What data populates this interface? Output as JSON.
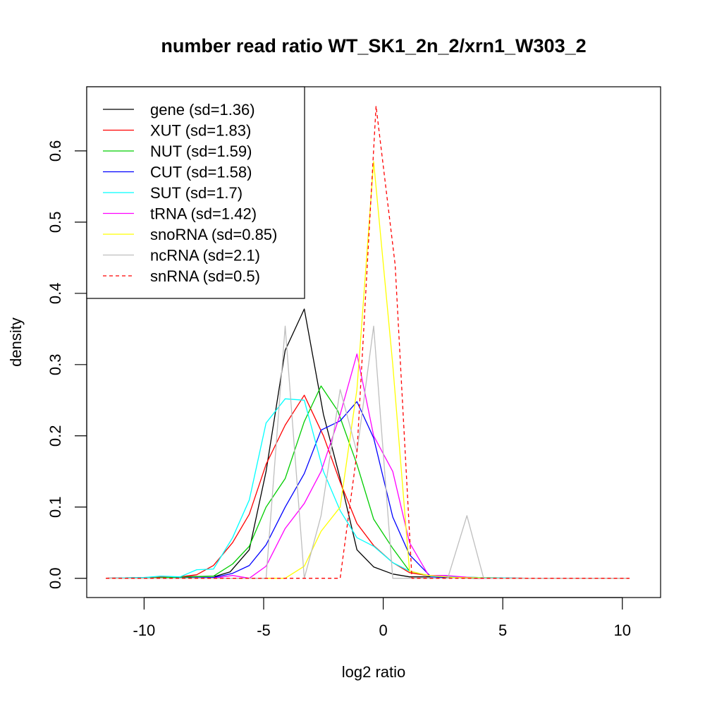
{
  "chart_data": {
    "type": "line",
    "title": "number read ratio WT_SK1_2n_2/xrn1_W303_2",
    "xlabel": "log2 ratio",
    "ylabel": "density",
    "xlim": [
      -12.4,
      11.6
    ],
    "ylim": [
      -0.027,
      0.69
    ],
    "x_ticks": [
      -10,
      -5,
      0,
      5,
      10
    ],
    "x_tick_labels": [
      "-10",
      "-5",
      "0",
      "5",
      "10"
    ],
    "y_ticks": [
      0.0,
      0.1,
      0.2,
      0.3,
      0.4,
      0.5,
      0.6
    ],
    "y_tick_labels": [
      "0.0",
      "0.1",
      "0.2",
      "0.3",
      "0.4",
      "0.5",
      "0.6"
    ],
    "grid": false,
    "legend_position": "top-left",
    "series": [
      {
        "name": "gene (sd=1.36)",
        "color": "#000000",
        "dash": "solid",
        "x": [
          -11.6,
          -10.0,
          -9.0,
          -8.5,
          -7.0,
          -6.4,
          -5.6,
          -4.9,
          -4.1,
          -3.3,
          -2.5,
          -1.8,
          -1.1,
          -0.4,
          0.4,
          1.1,
          2.0,
          3.0,
          4.0,
          6.0,
          8.0,
          10.3
        ],
        "y": [
          0.0,
          0.001,
          0.001,
          0.002,
          0.003,
          0.009,
          0.04,
          0.15,
          0.32,
          0.378,
          0.23,
          0.14,
          0.04,
          0.016,
          0.006,
          0.002,
          0.002,
          0.001,
          0.0,
          0.0,
          0.0,
          0.0
        ]
      },
      {
        "name": "XUT (sd=1.83)",
        "color": "#ff0000",
        "dash": "solid",
        "x": [
          -11.6,
          -10.0,
          -9.0,
          -8.5,
          -7.8,
          -7.1,
          -6.3,
          -5.6,
          -4.9,
          -4.1,
          -3.3,
          -2.5,
          -1.8,
          -1.1,
          -0.4,
          0.4,
          1.1,
          2.0,
          3.0,
          4.0,
          6.0,
          8.0,
          10.3
        ],
        "y": [
          0.0,
          0.001,
          0.002,
          0.002,
          0.005,
          0.018,
          0.05,
          0.09,
          0.16,
          0.215,
          0.257,
          0.2,
          0.135,
          0.077,
          0.046,
          0.022,
          0.008,
          0.003,
          0.002,
          0.001,
          0.0,
          0.0,
          0.0
        ]
      },
      {
        "name": "NUT (sd=1.59)",
        "color": "#00cd00",
        "dash": "solid",
        "x": [
          -11.6,
          -10.0,
          -9.0,
          -8.0,
          -7.1,
          -6.3,
          -5.6,
          -4.9,
          -4.1,
          -3.3,
          -2.6,
          -1.9,
          -1.1,
          -0.4,
          0.4,
          1.1,
          2.0,
          3.0,
          4.0,
          6.0,
          8.0,
          10.3
        ],
        "y": [
          0.0,
          0.0,
          0.001,
          0.002,
          0.003,
          0.02,
          0.045,
          0.1,
          0.14,
          0.22,
          0.27,
          0.235,
          0.16,
          0.083,
          0.042,
          0.01,
          0.003,
          0.001,
          0.0,
          0.0,
          0.0,
          0.0
        ]
      },
      {
        "name": "CUT (sd=1.58)",
        "color": "#0000ff",
        "dash": "solid",
        "x": [
          -11.6,
          -9.0,
          -7.1,
          -6.3,
          -5.6,
          -4.9,
          -4.1,
          -3.3,
          -2.6,
          -1.8,
          -1.1,
          -0.4,
          0.4,
          1.1,
          2.0,
          3.0,
          4.0,
          6.0,
          8.0,
          10.3
        ],
        "y": [
          0.0,
          0.0,
          0.001,
          0.007,
          0.018,
          0.047,
          0.1,
          0.147,
          0.208,
          0.221,
          0.248,
          0.197,
          0.086,
          0.033,
          0.002,
          0.001,
          0.0,
          0.0,
          0.0,
          0.0
        ]
      },
      {
        "name": "SUT (sd=1.7)",
        "color": "#00ffff",
        "dash": "solid",
        "x": [
          -11.6,
          -10.0,
          -9.3,
          -8.5,
          -7.8,
          -7.1,
          -6.3,
          -5.6,
          -4.9,
          -4.1,
          -3.3,
          -2.5,
          -1.8,
          -1.1,
          -0.4,
          0.4,
          1.1,
          2.0,
          3.0,
          4.0,
          6.0,
          8.0,
          10.3
        ],
        "y": [
          0.0,
          0.001,
          0.003,
          0.002,
          0.012,
          0.013,
          0.057,
          0.11,
          0.218,
          0.252,
          0.25,
          0.15,
          0.095,
          0.057,
          0.045,
          0.022,
          0.01,
          0.003,
          0.002,
          0.001,
          0.0,
          0.0,
          0.0
        ]
      },
      {
        "name": "tRNA (sd=1.42)",
        "color": "#ff00ff",
        "dash": "solid",
        "x": [
          -11.6,
          -7.1,
          -6.3,
          -5.6,
          -4.9,
          -4.1,
          -3.3,
          -2.6,
          -1.8,
          -1.1,
          -0.4,
          0.4,
          1.1,
          1.9,
          2.6,
          3.3,
          4.0,
          6.0,
          8.0,
          10.3
        ],
        "y": [
          0.0,
          0.0,
          0.004,
          0.0,
          0.017,
          0.07,
          0.105,
          0.15,
          0.23,
          0.315,
          0.2,
          0.15,
          0.05,
          0.004,
          0.004,
          0.002,
          0.0,
          0.0,
          0.0,
          0.0
        ]
      },
      {
        "name": "snoRNA (sd=0.85)",
        "color": "#ffff00",
        "dash": "solid",
        "x": [
          -11.6,
          -6.0,
          -4.1,
          -3.3,
          -2.6,
          -1.8,
          -1.1,
          -0.4,
          0.4,
          1.1,
          1.9,
          3.0,
          5.0,
          8.0,
          10.3
        ],
        "y": [
          0.0,
          0.0,
          0.0,
          0.017,
          0.066,
          0.1,
          0.265,
          0.585,
          0.3,
          0.01,
          0.004,
          0.001,
          0.0,
          0.0,
          0.0
        ]
      },
      {
        "name": "ncRNA (sd=2.1)",
        "color": "#bebebe",
        "dash": "solid",
        "x": [
          -11.6,
          -6.0,
          -4.9,
          -4.1,
          -3.3,
          -2.6,
          -1.8,
          -1.1,
          -0.4,
          0.4,
          1.1,
          1.9,
          2.7,
          3.5,
          4.2,
          6.0,
          8.0,
          10.3
        ],
        "y": [
          0.0,
          0.0,
          0.0,
          0.354,
          0.0,
          0.088,
          0.265,
          0.177,
          0.354,
          0.0,
          0.0,
          0.0,
          0.0,
          0.088,
          0.0,
          0.0,
          0.0,
          0.0
        ]
      },
      {
        "name": "snRNA (sd=0.5)",
        "color": "#ff0000",
        "dash": "dashed",
        "x": [
          -11.6,
          -6.0,
          -1.8,
          -1.1,
          -0.3,
          0.5,
          1.2,
          2.0,
          4.0,
          8.0,
          10.3
        ],
        "y": [
          0.0,
          0.0,
          0.0,
          0.176,
          0.663,
          0.44,
          0.0,
          0.0,
          0.0,
          0.0,
          0.0
        ]
      }
    ]
  }
}
